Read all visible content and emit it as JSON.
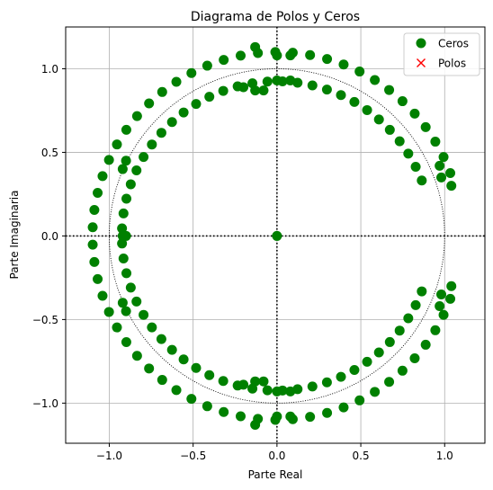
{
  "chart_data": {
    "type": "scatter",
    "title": "Diagrama de Polos y Ceros",
    "xlabel": "Parte Real",
    "ylabel": "Parte Imaginaria",
    "xlim": [
      -1.26,
      1.24
    ],
    "ylim": [
      -1.24,
      1.25
    ],
    "x_ticks": [
      -1.0,
      -0.5,
      0.0,
      0.5,
      1.0
    ],
    "x_tick_labels": [
      "−1.0",
      "−0.5",
      "0.0",
      "0.5",
      "1.0"
    ],
    "y_ticks": [
      -1.0,
      -0.5,
      0.0,
      0.5,
      1.0
    ],
    "y_tick_labels": [
      "−1.0",
      "−0.5",
      "0.0",
      "0.5",
      "1.0"
    ],
    "grid": true,
    "legend_position": "top-right",
    "unit_circle": {
      "radius": 1.0,
      "style": "dotted",
      "color": "#000000"
    },
    "axis_lines": {
      "x": 0,
      "y": 0,
      "style": "dotted",
      "color": "#000000"
    },
    "series": [
      {
        "name": "Ceros",
        "marker": "circle",
        "color": "#008000",
        "points": [
          [
            0.0,
            0.0
          ],
          [
            -0.13,
            1.13
          ],
          [
            -0.08,
            0.87
          ],
          [
            -0.13,
            0.87
          ],
          [
            -0.2,
            0.89
          ],
          [
            0.0,
            1.08
          ],
          [
            0.08,
            1.08
          ],
          [
            0.0,
            0.93
          ],
          [
            0.08,
            0.93
          ],
          [
            -0.13,
            -1.13
          ],
          [
            -0.08,
            -0.87
          ],
          [
            -0.13,
            -0.87
          ],
          [
            -0.2,
            -0.89
          ],
          [
            0.0,
            -1.08
          ],
          [
            0.08,
            -1.08
          ],
          [
            0.0,
            -0.93
          ],
          [
            0.08,
            -0.93
          ],
          [
            -0.9,
            0.45
          ],
          [
            -0.92,
            0.4
          ],
          [
            -0.9,
            0.0
          ],
          [
            -0.92,
            0.0
          ],
          [
            -0.9,
            -0.45
          ],
          [
            -0.92,
            -0.4
          ],
          [
            0.97,
            0.42
          ],
          [
            0.98,
            0.35
          ],
          [
            0.97,
            -0.42
          ],
          [
            0.98,
            -0.35
          ],
          [
            1.04,
            0.3
          ],
          [
            1.04,
            -0.3
          ]
        ],
        "rings": [
          {
            "radius": 1.1,
            "start_deg": 20,
            "end_deg": 340,
            "count": 60
          },
          {
            "radius": 0.925,
            "start_deg": 21,
            "end_deg": 339,
            "count": 58
          }
        ]
      },
      {
        "name": "Polos",
        "marker": "x",
        "color": "#ff0000",
        "points": []
      }
    ]
  }
}
